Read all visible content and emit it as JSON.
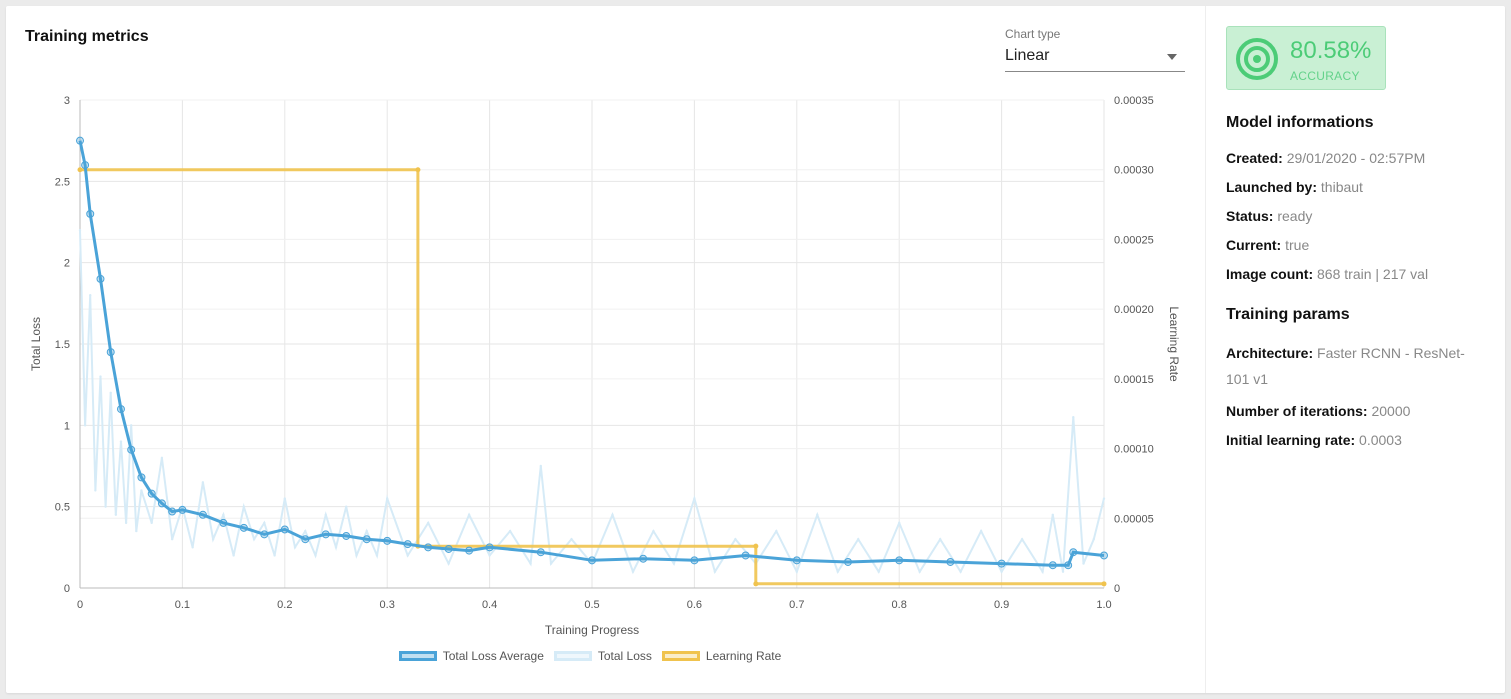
{
  "panel": {
    "title": "Training metrics",
    "chart_type_label": "Chart type",
    "chart_type_value": "Linear"
  },
  "accuracy": {
    "value": "80.58%",
    "label": "ACCURACY",
    "color": "#4ccc77",
    "icon": "target-icon"
  },
  "model_info": {
    "title": "Model informations",
    "rows": [
      {
        "label": "Created:",
        "value": "29/01/2020 - 02:57PM"
      },
      {
        "label": "Launched by:",
        "value": "thibaut"
      },
      {
        "label": "Status:",
        "value": "ready"
      },
      {
        "label": "Current:",
        "value": "true"
      },
      {
        "label": "Image count:",
        "value": "868 train | 217 val"
      }
    ]
  },
  "training_params": {
    "title": "Training params",
    "rows": [
      {
        "label": "Architecture:",
        "value": "Faster RCNN - ResNet-101 v1"
      },
      {
        "label": "Number of iterations:",
        "value": "20000"
      },
      {
        "label": "Initial learning rate:",
        "value": "0.0003"
      }
    ]
  },
  "chart_data": {
    "type": "line",
    "xlabel": "Training Progress",
    "ylabel": "Total Loss",
    "y2label": "Learning Rate",
    "xlim": [
      0,
      1.0
    ],
    "ylim": [
      0,
      3
    ],
    "y2lim": [
      0,
      0.00035
    ],
    "x_ticks": [
      "0",
      "0.1",
      "0.2",
      "0.3",
      "0.4",
      "0.5",
      "0.6",
      "0.7",
      "0.8",
      "0.9",
      "1.0"
    ],
    "y_ticks": [
      "0",
      "0.5",
      "1",
      "1.5",
      "2",
      "2.5",
      "3"
    ],
    "y2_ticks": [
      "0",
      "0.00005",
      "0.00010",
      "0.00015",
      "0.00020",
      "0.00025",
      "0.00030",
      "0.00035"
    ],
    "grid": true,
    "legend_position": "bottom",
    "series": [
      {
        "name": "Total Loss Average",
        "axis": "left",
        "color": "#4aa3d8",
        "x": [
          0,
          0.005,
          0.01,
          0.02,
          0.03,
          0.04,
          0.05,
          0.06,
          0.07,
          0.08,
          0.09,
          0.1,
          0.12,
          0.14,
          0.16,
          0.18,
          0.2,
          0.22,
          0.24,
          0.26,
          0.28,
          0.3,
          0.32,
          0.34,
          0.36,
          0.38,
          0.4,
          0.45,
          0.5,
          0.55,
          0.6,
          0.65,
          0.7,
          0.75,
          0.8,
          0.85,
          0.9,
          0.95,
          0.965,
          0.97,
          1.0
        ],
        "y": [
          2.75,
          2.6,
          2.3,
          1.9,
          1.45,
          1.1,
          0.85,
          0.68,
          0.58,
          0.52,
          0.47,
          0.48,
          0.45,
          0.4,
          0.37,
          0.33,
          0.36,
          0.3,
          0.33,
          0.32,
          0.3,
          0.29,
          0.27,
          0.25,
          0.24,
          0.23,
          0.25,
          0.22,
          0.17,
          0.18,
          0.17,
          0.2,
          0.17,
          0.16,
          0.17,
          0.16,
          0.15,
          0.14,
          0.14,
          0.22,
          0.2
        ]
      },
      {
        "name": "Total Loss",
        "axis": "left",
        "color": "#d6ebf7",
        "x": [
          0,
          0.005,
          0.01,
          0.015,
          0.02,
          0.025,
          0.03,
          0.035,
          0.04,
          0.045,
          0.05,
          0.055,
          0.06,
          0.07,
          0.08,
          0.09,
          0.1,
          0.11,
          0.12,
          0.13,
          0.14,
          0.15,
          0.16,
          0.17,
          0.18,
          0.19,
          0.2,
          0.21,
          0.22,
          0.23,
          0.24,
          0.25,
          0.26,
          0.27,
          0.28,
          0.29,
          0.3,
          0.32,
          0.34,
          0.36,
          0.38,
          0.4,
          0.42,
          0.44,
          0.45,
          0.46,
          0.48,
          0.5,
          0.52,
          0.54,
          0.56,
          0.58,
          0.6,
          0.62,
          0.64,
          0.66,
          0.68,
          0.7,
          0.72,
          0.74,
          0.76,
          0.78,
          0.8,
          0.82,
          0.84,
          0.86,
          0.88,
          0.9,
          0.92,
          0.94,
          0.95,
          0.96,
          0.97,
          0.98,
          0.99,
          1.0
        ],
        "y": [
          2.2,
          1.0,
          1.8,
          0.6,
          1.3,
          0.5,
          1.2,
          0.45,
          0.9,
          0.4,
          1.0,
          0.35,
          0.6,
          0.4,
          0.8,
          0.3,
          0.5,
          0.25,
          0.65,
          0.3,
          0.45,
          0.2,
          0.5,
          0.3,
          0.4,
          0.2,
          0.55,
          0.25,
          0.35,
          0.2,
          0.45,
          0.25,
          0.5,
          0.2,
          0.35,
          0.2,
          0.55,
          0.2,
          0.4,
          0.15,
          0.45,
          0.2,
          0.35,
          0.15,
          0.75,
          0.15,
          0.3,
          0.15,
          0.45,
          0.1,
          0.35,
          0.15,
          0.55,
          0.1,
          0.3,
          0.15,
          0.35,
          0.1,
          0.45,
          0.1,
          0.3,
          0.1,
          0.4,
          0.1,
          0.3,
          0.1,
          0.35,
          0.1,
          0.3,
          0.1,
          0.45,
          0.1,
          1.05,
          0.15,
          0.3,
          0.55
        ]
      },
      {
        "name": "Learning Rate",
        "axis": "right",
        "color": "#f0c34e",
        "x": [
          0,
          0.33,
          0.33,
          0.66,
          0.66,
          1.0
        ],
        "y": [
          0.0003,
          0.0003,
          3e-05,
          3e-05,
          3e-06,
          3e-06
        ]
      }
    ]
  }
}
